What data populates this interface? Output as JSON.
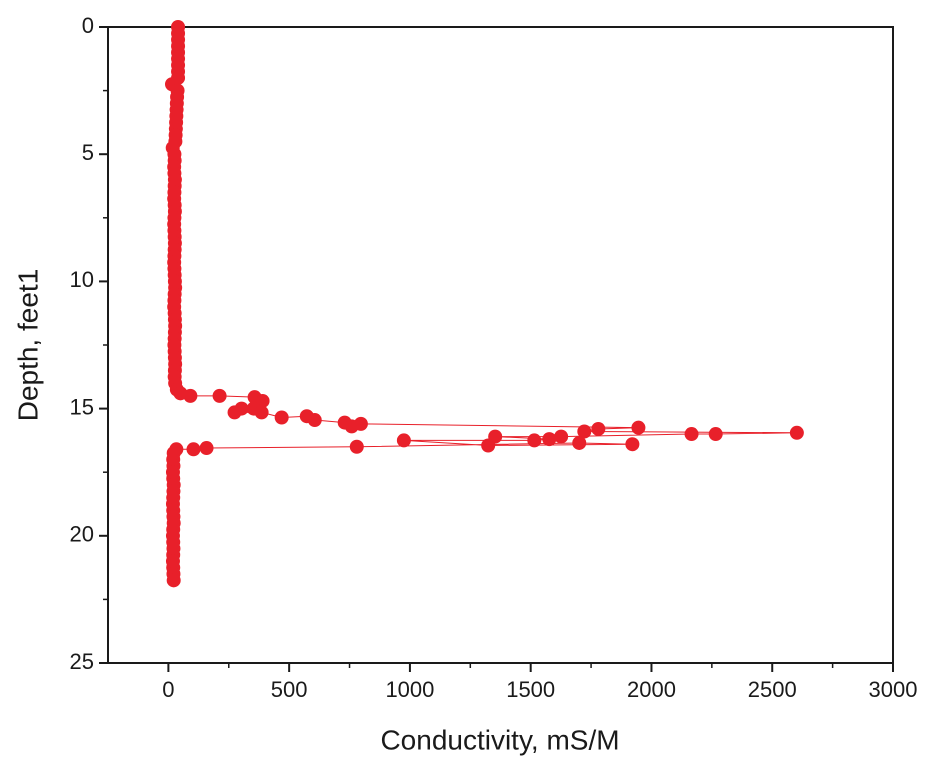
{
  "chart_data": {
    "type": "line",
    "x_label": "Conductivity, mS/M",
    "y_label": "Depth, feet1",
    "x": [
      40,
      40,
      40,
      40,
      40,
      40,
      40,
      40,
      40,
      15,
      38,
      36,
      35,
      34,
      33,
      32,
      31,
      30,
      29,
      18,
      25,
      26,
      24,
      25,
      27,
      26,
      25,
      24,
      26,
      27,
      25,
      24,
      25,
      26,
      27,
      26,
      25,
      24,
      25,
      26,
      27,
      28,
      26,
      25,
      24,
      26,
      27,
      28,
      27,
      26,
      25,
      26,
      27,
      28,
      27,
      26,
      28,
      35,
      50,
      91,
      212,
      357,
      390,
      353,
      303,
      274,
      386,
      469,
      573,
      606,
      730,
      759,
      797,
      1946,
      1780,
      1722,
      2602,
      2266,
      2166,
      1626,
      1353,
      1577,
      1515,
      975,
      1324,
      1921,
      1701,
      780,
      158,
      104,
      33,
      22,
      20,
      21,
      19,
      20,
      22,
      21,
      20,
      19,
      20,
      21,
      22,
      20,
      19,
      20,
      21,
      20,
      19,
      20,
      21,
      22
    ],
    "series": [
      {
        "name": "Depth",
        "color": "#e8202a",
        "values": [
          0,
          0.25,
          0.5,
          0.75,
          1,
          1.25,
          1.5,
          1.75,
          2,
          2.25,
          2.5,
          2.75,
          3,
          3.25,
          3.5,
          3.75,
          4,
          4.25,
          4.5,
          4.75,
          5,
          5.25,
          5.5,
          5.75,
          6,
          6.25,
          6.5,
          6.75,
          7,
          7.25,
          7.5,
          7.75,
          8,
          8.25,
          8.5,
          8.75,
          9,
          9.25,
          9.5,
          9.75,
          10,
          10.25,
          10.5,
          10.75,
          11,
          11.25,
          11.5,
          11.75,
          12,
          12.25,
          12.5,
          12.75,
          13,
          13.25,
          13.5,
          13.75,
          14,
          14.25,
          14.4,
          14.5,
          14.5,
          14.55,
          14.7,
          15.0,
          15.0,
          15.15,
          15.15,
          15.35,
          15.3,
          15.45,
          15.55,
          15.7,
          15.6,
          15.75,
          15.8,
          15.9,
          15.95,
          16.0,
          16.0,
          16.1,
          16.1,
          16.2,
          16.25,
          16.25,
          16.45,
          16.4,
          16.35,
          16.5,
          16.55,
          16.6,
          16.6,
          16.75,
          17,
          17.25,
          17.5,
          17.75,
          18,
          18.25,
          18.5,
          18.75,
          19,
          19.25,
          19.5,
          19.75,
          20,
          20.25,
          20.5,
          20.75,
          21,
          21.25,
          21.5,
          21.75
        ]
      }
    ],
    "xlim": [
      -250,
      3000
    ],
    "xticks": [
      0,
      500,
      1000,
      1500,
      2000,
      2500,
      3000
    ],
    "x_minor_ticks": [
      250,
      750,
      1250,
      1750,
      2250,
      2750
    ],
    "ylim": [
      0,
      25
    ],
    "yticks": [
      0,
      5,
      10,
      15,
      20,
      25
    ],
    "y_minor_ticks": [
      2.5,
      7.5,
      12.5,
      17.5,
      22.5
    ],
    "y_inverted": true
  }
}
